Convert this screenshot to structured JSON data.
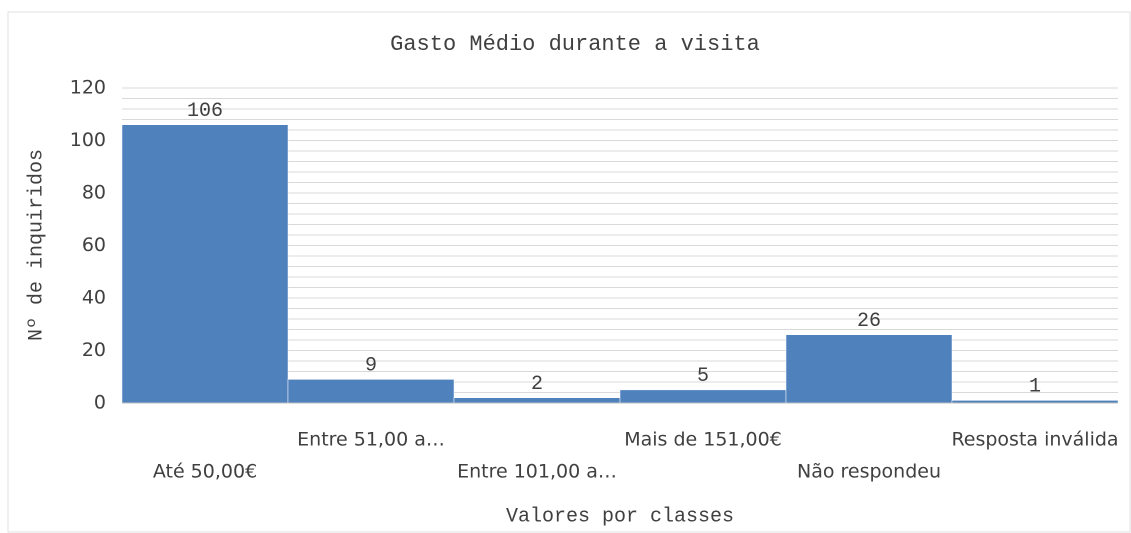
{
  "chart_data": {
    "type": "bar",
    "title": "Gasto Médio durante a visita",
    "x_label": "Valores por classes",
    "y_label": "Nº de inquiridos",
    "categories": [
      "Até 50,00€",
      "Entre 51,00 a…",
      "Entre 101,00 a…",
      "Mais de 151,00€",
      "Não respondeu",
      "Resposta inválida"
    ],
    "values": [
      106,
      9,
      2,
      5,
      26,
      1
    ],
    "color": "#4f81bd",
    "ylim": [
      0,
      120
    ],
    "yticks": [
      0,
      20,
      40,
      60,
      80,
      100,
      120
    ],
    "grid": true,
    "minor_grid_step": 4
  }
}
